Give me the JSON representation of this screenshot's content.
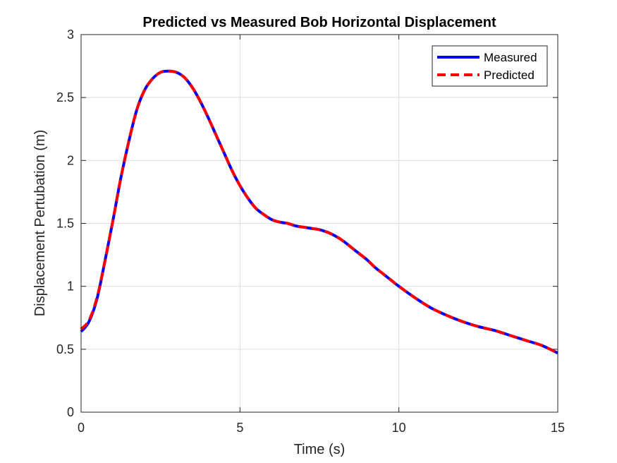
{
  "chart_data": {
    "type": "line",
    "title": "Predicted vs Measured Bob Horizontal Displacement",
    "xlabel": "Time (s)",
    "ylabel": "Displacement Pertubation (m)",
    "xlim": [
      0,
      15
    ],
    "ylim": [
      0,
      3
    ],
    "xticks": [
      0,
      5,
      10,
      15
    ],
    "yticks": [
      0,
      0.5,
      1,
      1.5,
      2,
      2.5,
      3
    ],
    "xtick_labels": [
      "0",
      "5",
      "10",
      "15"
    ],
    "ytick_labels": [
      "0",
      "0.5",
      "1",
      "1.5",
      "2",
      "2.5",
      "3"
    ],
    "grid": true,
    "legend_position": "top-right",
    "series": [
      {
        "name": "Measured",
        "color": "#0000ff",
        "style": "solid",
        "x": [
          0,
          0.25,
          0.5,
          0.75,
          1,
          1.25,
          1.5,
          1.75,
          2,
          2.25,
          2.5,
          2.75,
          3,
          3.25,
          3.5,
          3.75,
          4,
          4.25,
          4.5,
          4.75,
          5,
          5.25,
          5.5,
          5.75,
          6,
          6.25,
          6.5,
          6.75,
          7,
          7.25,
          7.5,
          7.75,
          8,
          8.25,
          8.5,
          8.75,
          9,
          9.25,
          9.5,
          9.75,
          10,
          10.5,
          11,
          11.5,
          12,
          12.5,
          13,
          13.5,
          14,
          14.5,
          15
        ],
        "y": [
          0.64,
          0.72,
          0.9,
          1.2,
          1.52,
          1.86,
          2.15,
          2.4,
          2.56,
          2.65,
          2.7,
          2.71,
          2.7,
          2.66,
          2.58,
          2.47,
          2.34,
          2.2,
          2.06,
          1.92,
          1.8,
          1.7,
          1.62,
          1.57,
          1.53,
          1.51,
          1.5,
          1.48,
          1.47,
          1.46,
          1.45,
          1.43,
          1.4,
          1.36,
          1.31,
          1.26,
          1.21,
          1.15,
          1.1,
          1.05,
          1.0,
          0.91,
          0.83,
          0.77,
          0.72,
          0.68,
          0.65,
          0.61,
          0.57,
          0.53,
          0.47
        ]
      },
      {
        "name": "Predicted",
        "color": "#ff0000",
        "style": "dashed",
        "x": [
          0,
          0.25,
          0.5,
          0.75,
          1,
          1.25,
          1.5,
          1.75,
          2,
          2.25,
          2.5,
          2.75,
          3,
          3.25,
          3.5,
          3.75,
          4,
          4.25,
          4.5,
          4.75,
          5,
          5.25,
          5.5,
          5.75,
          6,
          6.25,
          6.5,
          6.75,
          7,
          7.25,
          7.5,
          7.75,
          8,
          8.25,
          8.5,
          8.75,
          9,
          9.25,
          9.5,
          9.75,
          10,
          10.5,
          11,
          11.5,
          12,
          12.5,
          13,
          13.5,
          14,
          14.5,
          15
        ],
        "y": [
          0.66,
          0.73,
          0.91,
          1.2,
          1.52,
          1.86,
          2.15,
          2.4,
          2.56,
          2.65,
          2.7,
          2.71,
          2.7,
          2.66,
          2.58,
          2.47,
          2.34,
          2.2,
          2.06,
          1.92,
          1.8,
          1.7,
          1.62,
          1.57,
          1.53,
          1.51,
          1.5,
          1.48,
          1.47,
          1.46,
          1.45,
          1.43,
          1.4,
          1.36,
          1.31,
          1.26,
          1.21,
          1.15,
          1.1,
          1.05,
          1.0,
          0.91,
          0.83,
          0.77,
          0.72,
          0.68,
          0.65,
          0.61,
          0.57,
          0.53,
          0.47
        ]
      }
    ]
  }
}
